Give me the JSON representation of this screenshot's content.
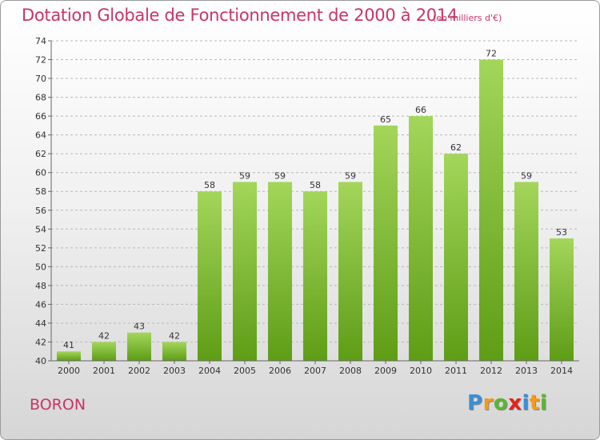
{
  "header": {
    "title": "Dotation Globale de Fonctionnement de 2000 à 2014",
    "unit": "(en milliers d'€)"
  },
  "footer": {
    "place": "BORON",
    "logo_letters": [
      "P",
      "r",
      "o",
      "x",
      "i",
      "t",
      "i"
    ],
    "logo_colors": [
      "#3a8fd6",
      "#f29a1b",
      "#5cb531",
      "#e2231a",
      "#3a8fd6",
      "#f29a1b",
      "#5cb531"
    ]
  },
  "chart_data": {
    "type": "bar",
    "categories": [
      "2000",
      "2001",
      "2002",
      "2003",
      "2004",
      "2005",
      "2006",
      "2007",
      "2008",
      "2009",
      "2010",
      "2011",
      "2012",
      "2013",
      "2014"
    ],
    "values": [
      41,
      42,
      43,
      42,
      58,
      59,
      59,
      58,
      59,
      65,
      66,
      62,
      72,
      59,
      53
    ],
    "data_labels": [
      "41",
      "42",
      "43",
      "42",
      "58",
      "59",
      "59",
      "58",
      "59",
      "65",
      "66",
      "62",
      "72",
      "59",
      "53"
    ],
    "title": "Dotation Globale de Fonctionnement de 2000 à 2014",
    "xlabel": "",
    "ylabel": "",
    "ylim": [
      40,
      74
    ],
    "yticks": [
      40,
      42,
      44,
      46,
      48,
      50,
      52,
      54,
      56,
      58,
      60,
      62,
      64,
      66,
      68,
      70,
      72,
      74
    ],
    "grid": "horizontal dashed",
    "colors": {
      "bar_top": "#a3d65a",
      "bar_bottom": "#5e9d16",
      "grid": "#b8b8b8",
      "axis": "#666666"
    }
  }
}
